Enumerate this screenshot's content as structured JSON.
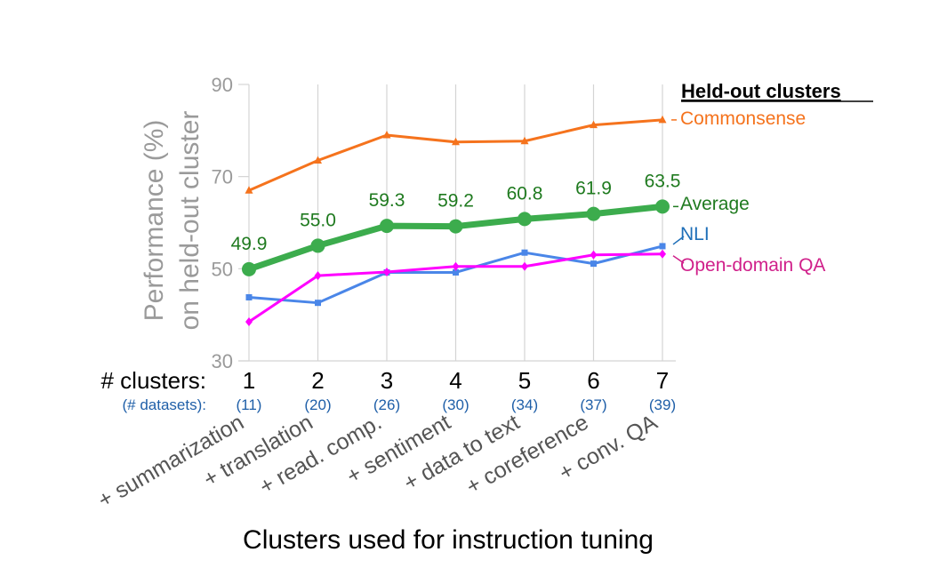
{
  "chart_data": {
    "type": "line",
    "title": "",
    "xlabel": "Clusters used for instruction tuning",
    "ylabel_line1": "Performance (%)",
    "ylabel_line2": "on held-out cluster",
    "ylim": [
      30,
      90
    ],
    "yticks": [
      "30",
      "50",
      "70",
      "90"
    ],
    "x": [
      "1",
      "2",
      "3",
      "4",
      "5",
      "6",
      "7"
    ],
    "x_row_label": "# clusters:",
    "datasets_row_label": "(# datasets):",
    "datasets": [
      "(11)",
      "(20)",
      "(26)",
      "(30)",
      "(34)",
      "(37)",
      "(39)"
    ],
    "categories": [
      "+ summarization",
      "+ translation",
      "+ read. comp.",
      "+ sentiment",
      "+ data to text",
      "+ coreference",
      "+ conv. QA"
    ],
    "legend_title": "Held-out clusters",
    "legend_position": "right",
    "grid": "vertical",
    "series": [
      {
        "name": "Commonsense",
        "color": "#f5731d",
        "marker": "triangle",
        "values": [
          67.0,
          73.5,
          79.0,
          77.5,
          77.7,
          81.2,
          82.3
        ]
      },
      {
        "name": "Average",
        "color": "#3cac4d",
        "marker": "circle",
        "values": [
          49.9,
          55.0,
          59.3,
          59.2,
          60.8,
          61.9,
          63.5
        ],
        "labels": [
          "49.9",
          "55.0",
          "59.3",
          "59.2",
          "60.8",
          "61.9",
          "63.5"
        ]
      },
      {
        "name": "NLI",
        "color": "#4a86e8",
        "marker": "square",
        "values": [
          43.8,
          42.6,
          49.2,
          49.2,
          53.5,
          51.1,
          54.9
        ]
      },
      {
        "name": "Open-domain QA",
        "color": "#ff00ff",
        "marker": "diamond",
        "values": [
          38.5,
          48.5,
          49.3,
          50.5,
          50.5,
          53.0,
          53.2
        ]
      }
    ],
    "legend_text_colors": {
      "Commonsense": "#f5731d",
      "Average": "#1f7a1f",
      "NLI": "#1f6fb8",
      "Open-domain QA": "#d0208a"
    }
  }
}
